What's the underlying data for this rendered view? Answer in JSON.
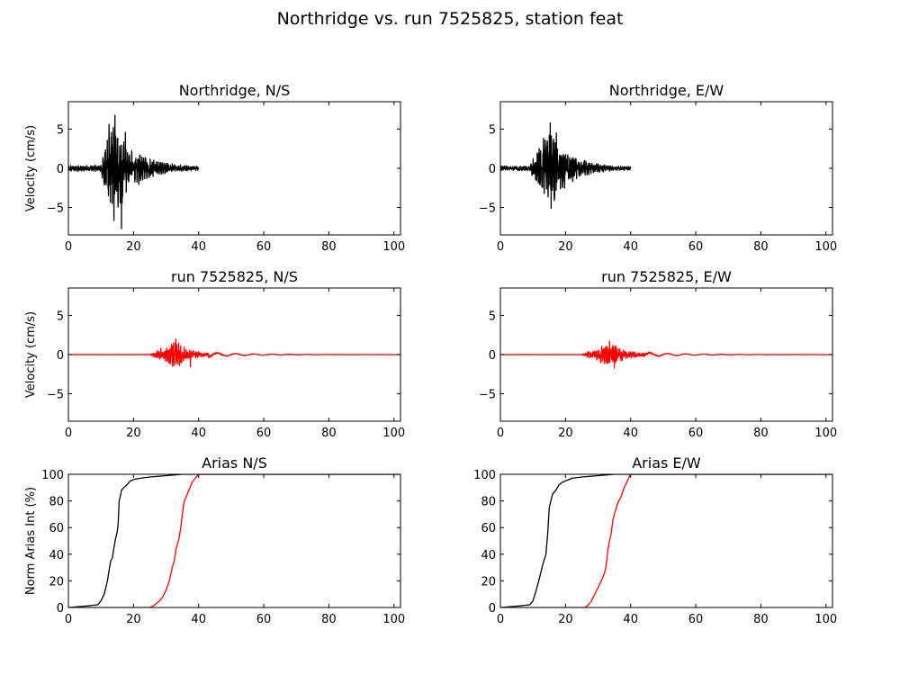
{
  "figure": {
    "title": "Northridge vs. run 7525825, station feat"
  },
  "chart_data": [
    {
      "type": "line",
      "title": "Northridge, N/S",
      "xlabel": "",
      "ylabel": "Velocity (cm/s)",
      "xlim": [
        0,
        102
      ],
      "ylim": [
        -8.5,
        8.5
      ],
      "xticks": [
        0,
        20,
        40,
        60,
        80,
        100
      ],
      "yticks": [
        -5,
        0,
        5
      ],
      "grid": false,
      "signal": {
        "onset": 10,
        "peak_time": 14,
        "end": 40,
        "peak_abs": 7.7,
        "baseline_noise": 0.5,
        "decay": 6,
        "freq": 1.6,
        "seed": 11
      },
      "series": [
        {
          "color": "#000000",
          "peaks": [
            [
              12.5,
              5.6
            ],
            [
              16.3,
              -7.7
            ],
            [
              17.5,
              4.6
            ],
            [
              13.5,
              -4.5
            ]
          ]
        }
      ]
    },
    {
      "type": "line",
      "title": "Northridge, E/W",
      "xlabel": "",
      "ylabel": "",
      "xlim": [
        0,
        102
      ],
      "ylim": [
        -8.5,
        8.5
      ],
      "xticks": [
        0,
        20,
        40,
        60,
        80,
        100
      ],
      "yticks": [
        -5,
        0,
        5
      ],
      "grid": false,
      "signal": {
        "onset": 9,
        "peak_time": 15,
        "end": 40,
        "peak_abs": 5.8,
        "baseline_noise": 0.4,
        "decay": 6,
        "freq": 1.6,
        "seed": 23
      },
      "series": [
        {
          "color": "#000000",
          "peaks": [
            [
              15.3,
              5.8
            ],
            [
              15.6,
              -5.1
            ],
            [
              17.2,
              4.5
            ]
          ]
        }
      ]
    },
    {
      "type": "line",
      "title": "run 7525825, N/S",
      "xlabel": "",
      "ylabel": "Velocity (cm/s)",
      "xlim": [
        0,
        102
      ],
      "ylim": [
        -8.5,
        8.5
      ],
      "xticks": [
        0,
        20,
        40,
        60,
        80,
        100
      ],
      "yticks": [
        -5,
        0,
        5
      ],
      "grid": false,
      "signal": {
        "onset": 25,
        "peak_time": 33,
        "end": 102,
        "peak_abs": 2.0,
        "baseline_noise": 0.02,
        "decay": 4.5,
        "freq": 1.8,
        "seed": 37
      },
      "series": [
        {
          "color": "#ff0000",
          "peaks": [
            [
              33,
              2.0
            ],
            [
              37.5,
              -1.6
            ]
          ]
        }
      ]
    },
    {
      "type": "line",
      "title": "run 7525825, E/W",
      "xlabel": "",
      "ylabel": "",
      "xlim": [
        0,
        102
      ],
      "ylim": [
        -8.5,
        8.5
      ],
      "xticks": [
        0,
        20,
        40,
        60,
        80,
        100
      ],
      "yticks": [
        -5,
        0,
        5
      ],
      "grid": false,
      "signal": {
        "onset": 25,
        "peak_time": 34,
        "end": 102,
        "peak_abs": 1.8,
        "baseline_noise": 0.02,
        "decay": 4.5,
        "freq": 1.8,
        "seed": 41
      },
      "series": [
        {
          "color": "#ff0000",
          "peaks": [
            [
              33.5,
              1.7
            ],
            [
              35,
              -1.7
            ]
          ]
        }
      ]
    },
    {
      "type": "line",
      "title": "Arias N/S",
      "xlabel": "",
      "ylabel": "Norm Arias Int (%)",
      "xlim": [
        0,
        102
      ],
      "ylim": [
        0,
        100
      ],
      "xticks": [
        0,
        20,
        40,
        60,
        80,
        100
      ],
      "yticks": [
        0,
        20,
        40,
        60,
        80,
        100
      ],
      "grid": false,
      "series": [
        {
          "color": "#000000",
          "x": [
            0,
            5,
            9,
            10,
            11,
            12,
            12.5,
            13,
            13.5,
            14,
            14.5,
            15,
            15.3,
            15.6,
            16,
            16.3,
            17,
            18,
            19,
            20,
            22,
            25,
            30,
            35,
            40,
            102
          ],
          "y": [
            0,
            1,
            2,
            5,
            10,
            20,
            28,
            35,
            37,
            45,
            52,
            57,
            63,
            80,
            84,
            88,
            90,
            92,
            95,
            96,
            97,
            98,
            99,
            100,
            100,
            100
          ]
        },
        {
          "color": "#ff0000",
          "x": [
            0,
            25,
            26,
            28,
            29,
            30,
            31,
            32,
            32.5,
            33,
            33.5,
            34,
            34.5,
            35,
            35.5,
            36,
            37,
            38,
            39,
            40,
            102
          ],
          "y": [
            0,
            0,
            1,
            5,
            8,
            13,
            20,
            31,
            35,
            43,
            48,
            52,
            60,
            70,
            79,
            82,
            88,
            94,
            97,
            100,
            100
          ]
        }
      ]
    },
    {
      "type": "line",
      "title": "Arias E/W",
      "xlabel": "",
      "ylabel": "",
      "xlim": [
        0,
        102
      ],
      "ylim": [
        0,
        100
      ],
      "xticks": [
        0,
        20,
        40,
        60,
        80,
        100
      ],
      "yticks": [
        0,
        20,
        40,
        60,
        80,
        100
      ],
      "grid": false,
      "series": [
        {
          "color": "#000000",
          "x": [
            0,
            5,
            9,
            10,
            11,
            12,
            13,
            14,
            14.5,
            15,
            15.5,
            16,
            17,
            18,
            19,
            20,
            22,
            25,
            30,
            35,
            40,
            102
          ],
          "y": [
            0,
            1,
            2,
            5,
            13,
            22,
            32,
            40,
            55,
            75,
            80,
            85,
            88,
            92,
            94,
            95,
            97,
            98,
            99,
            100,
            100,
            100
          ]
        },
        {
          "color": "#ff0000",
          "x": [
            0,
            26,
            27,
            28,
            29,
            30,
            31,
            32,
            32.5,
            33,
            33.5,
            34,
            34.5,
            35,
            36,
            37,
            38,
            39,
            40,
            102
          ],
          "y": [
            0,
            0,
            2,
            5,
            10,
            15,
            20,
            26,
            32,
            43,
            50,
            55,
            65,
            70,
            78,
            83,
            90,
            95,
            100,
            100
          ]
        }
      ]
    }
  ]
}
